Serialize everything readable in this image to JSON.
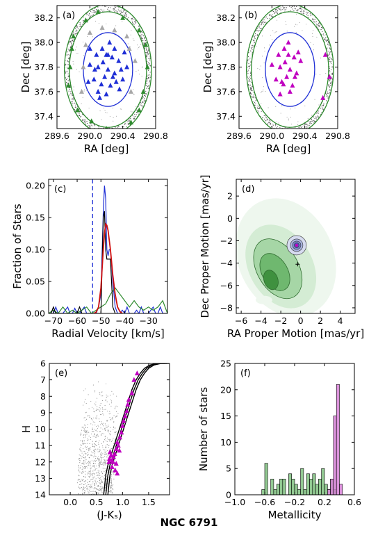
{
  "figure_title": "NGC 6791",
  "colors": {
    "member_blue": "#1f2fd6",
    "member_magenta": "#c000c0",
    "field_green": "#2e8b2e",
    "nonmember_gray": "#a8a8a8",
    "model_red": "#d01010",
    "hist_green": "#7fbf7f",
    "hist_magenta": "#d67fd6"
  },
  "chart_data": [
    {
      "panel": "(a)",
      "type": "scatter",
      "xlabel": "RA [deg]",
      "ylabel": "Dec [deg]",
      "xlim": [
        289.6,
        290.8
      ],
      "ylim": [
        37.3,
        38.3
      ],
      "xticks": [
        "289.6",
        "290.0",
        "290.4",
        "290.8"
      ],
      "yticks": [
        "37.4",
        "37.6",
        "37.8",
        "38.0",
        "38.2"
      ],
      "center": [
        290.22,
        37.78
      ],
      "circles_radius_deg": [
        0.3,
        0.47,
        0.53
      ],
      "series": [
        {
          "marker": "triangle",
          "color": "#1f2fd6",
          "points": [
            [
              290.1,
              37.8
            ],
            [
              290.2,
              37.9
            ],
            [
              290.3,
              37.75
            ],
            [
              290.05,
              37.7
            ],
            [
              290.25,
              37.65
            ],
            [
              290.15,
              37.95
            ],
            [
              290.35,
              37.85
            ],
            [
              290.0,
              37.82
            ],
            [
              290.22,
              37.78
            ],
            [
              290.4,
              37.7
            ],
            [
              290.1,
              37.6
            ],
            [
              290.3,
              37.95
            ],
            [
              290.18,
              37.72
            ],
            [
              290.27,
              37.88
            ],
            [
              290.08,
              37.9
            ],
            [
              290.36,
              37.62
            ],
            [
              290.12,
              37.55
            ],
            [
              290.45,
              37.8
            ],
            [
              290.0,
              37.95
            ],
            [
              290.24,
              38.0
            ],
            [
              290.32,
              37.68
            ],
            [
              290.16,
              37.84
            ],
            [
              289.98,
              37.68
            ],
            [
              290.42,
              37.92
            ],
            [
              290.2,
              37.58
            ],
            [
              290.06,
              37.78
            ],
            [
              290.28,
              37.72
            ],
            [
              290.14,
              37.66
            ],
            [
              290.38,
              37.78
            ],
            [
              290.22,
              37.9
            ]
          ]
        },
        {
          "marker": "triangle",
          "color": "#a8a8a8",
          "points": [
            [
              289.95,
              37.98
            ],
            [
              290.45,
              38.05
            ],
            [
              290.5,
              37.6
            ],
            [
              289.9,
              37.6
            ],
            [
              290.0,
              38.08
            ],
            [
              290.55,
              37.85
            ],
            [
              290.3,
              38.1
            ],
            [
              289.92,
              37.8
            ],
            [
              290.15,
              38.12
            ],
            [
              290.48,
              37.95
            ]
          ]
        },
        {
          "marker": "triangle",
          "color": "#2e8b2e",
          "points": [
            [
              289.76,
              37.8
            ],
            [
              289.8,
              38.05
            ],
            [
              290.1,
              38.25
            ],
            [
              290.6,
              38.1
            ],
            [
              290.7,
              37.8
            ],
            [
              290.6,
              37.45
            ],
            [
              290.2,
              37.3
            ],
            [
              289.85,
              37.45
            ],
            [
              289.74,
              37.65
            ],
            [
              290.4,
              38.2
            ],
            [
              290.65,
              37.6
            ],
            [
              289.95,
              38.18
            ],
            [
              290.5,
              37.35
            ],
            [
              290.02,
              37.36
            ],
            [
              290.68,
              37.98
            ],
            [
              289.78,
              37.95
            ]
          ]
        }
      ]
    },
    {
      "panel": "(b)",
      "type": "scatter",
      "xlabel": "RA [deg]",
      "ylabel": "Dec [deg]",
      "xlim": [
        289.6,
        290.8
      ],
      "ylim": [
        37.3,
        38.3
      ],
      "xticks": [
        "289.6",
        "290.0",
        "290.4",
        "290.8"
      ],
      "yticks": [
        "37.4",
        "37.6",
        "37.8",
        "38.0",
        "38.2"
      ],
      "center": [
        290.22,
        37.78
      ],
      "circles_radius_deg": [
        0.3,
        0.47,
        0.53
      ],
      "series": [
        {
          "marker": "triangle",
          "color": "#c000c0",
          "points": [
            [
              290.1,
              37.8
            ],
            [
              290.2,
              37.9
            ],
            [
              290.3,
              37.75
            ],
            [
              290.05,
              37.7
            ],
            [
              290.25,
              37.65
            ],
            [
              290.15,
              37.95
            ],
            [
              290.35,
              37.85
            ],
            [
              290.0,
              37.82
            ],
            [
              290.22,
              37.78
            ],
            [
              290.12,
              37.68
            ],
            [
              290.18,
              37.72
            ],
            [
              290.27,
              37.88
            ],
            [
              290.08,
              37.9
            ],
            [
              290.16,
              37.84
            ],
            [
              290.28,
              37.72
            ],
            [
              290.14,
              37.66
            ],
            [
              290.22,
              37.6
            ],
            [
              290.32,
              37.92
            ],
            [
              290.2,
              38.0
            ],
            [
              290.1,
              37.58
            ],
            [
              290.7,
              37.72
            ],
            [
              290.62,
              37.55
            ],
            [
              290.65,
              37.9
            ]
          ]
        }
      ]
    },
    {
      "panel": "(c)",
      "type": "line",
      "xlabel": "Radial Velocity [km/s]",
      "ylabel": "Fraction of Stars",
      "xlim": [
        -72,
        -22
      ],
      "ylim": [
        0,
        0.21
      ],
      "xticks": [
        "−70",
        "−60",
        "−50",
        "−40",
        "−30"
      ],
      "yticks": [
        "0.00",
        "0.05",
        "0.10",
        "0.15",
        "0.20"
      ],
      "vline_x": -53.5,
      "series": [
        {
          "color": "#1f2fd6",
          "x": [
            -72,
            -70,
            -69,
            -68,
            -67,
            -66,
            -65,
            -64,
            -63,
            -62,
            -61,
            -60,
            -59,
            -58,
            -57,
            -56,
            -55,
            -54,
            -53,
            -52,
            -51,
            -50,
            -49,
            -48.5,
            -48,
            -47.5,
            -47,
            -46.5,
            -46,
            -45,
            -44,
            -43,
            -42,
            -41,
            -40,
            -39,
            -38,
            -37,
            -36,
            -35,
            -34,
            -33,
            -32,
            -31,
            -30,
            -29,
            -28,
            -27,
            -26,
            -25,
            -24,
            -23,
            -22
          ],
          "y": [
            0,
            0,
            0.01,
            0,
            0,
            0,
            0.005,
            0.01,
            0,
            0,
            0.008,
            0,
            0,
            0.005,
            0.01,
            0,
            0,
            0,
            0,
            0,
            0.01,
            0.03,
            0.16,
            0.2,
            0.18,
            0.1,
            0.09,
            0.1,
            0.1,
            0.05,
            0.01,
            0,
            0,
            0.005,
            0,
            0.01,
            0,
            0,
            0,
            0.005,
            0,
            0.01,
            0,
            0,
            0,
            0.005,
            0.01,
            0,
            0,
            0.01,
            0,
            0,
            0
          ]
        },
        {
          "color": "#2e8b2e",
          "x": [
            -72,
            -70,
            -68,
            -66,
            -64,
            -62,
            -60,
            -58,
            -56,
            -54,
            -52,
            -50,
            -48,
            -46,
            -44,
            -42,
            -40,
            -38,
            -36,
            -34,
            -32,
            -30,
            -28,
            -26,
            -24,
            -22
          ],
          "y": [
            0,
            0.005,
            0,
            0.01,
            0,
            0.005,
            0,
            0.005,
            0.01,
            0,
            0.005,
            0.01,
            0.015,
            0.03,
            0.04,
            0.03,
            0.02,
            0.01,
            0.02,
            0.01,
            0.005,
            0.01,
            0.005,
            0.01,
            0.02,
            0
          ]
        },
        {
          "color": "#000000",
          "x": [
            -72,
            -71,
            -70,
            -69,
            -60,
            -59,
            -58,
            -50,
            -49,
            -48.5,
            -48,
            -47.5,
            -47,
            -46.5,
            -46,
            -45,
            -44,
            -43
          ],
          "y": [
            0,
            0,
            0.01,
            0,
            0,
            0.01,
            0,
            0,
            0.15,
            0.16,
            0.1,
            0.085,
            0.085,
            0.085,
            0.085,
            0.01,
            0,
            0
          ]
        },
        {
          "color": "#d01010",
          "x": [
            -53,
            -52,
            -51,
            -50,
            -49,
            -48.5,
            -48,
            -47.5,
            -47,
            -46,
            -45,
            -44,
            -43,
            -42,
            -41
          ],
          "y": [
            0,
            0.002,
            0.01,
            0.04,
            0.1,
            0.125,
            0.14,
            0.138,
            0.13,
            0.1,
            0.06,
            0.03,
            0.01,
            0.003,
            0
          ]
        }
      ]
    },
    {
      "panel": "(d)",
      "type": "heatmap",
      "xlabel": "RA Proper Motion [mas/yr]",
      "ylabel": "Dec Proper Motion [mas/yr]",
      "xlim": [
        -6.5,
        5.5
      ],
      "ylim": [
        -8.5,
        3.5
      ],
      "xticks": [
        "−6",
        "−4",
        "−2",
        "0",
        "2",
        "4"
      ],
      "yticks": [
        "−8",
        "−6",
        "−4",
        "−2",
        "0",
        "2"
      ],
      "member_center": [
        -0.4,
        -2.4
      ],
      "cross": [
        -0.3,
        -4.1
      ]
    },
    {
      "panel": "(e)",
      "type": "scatter",
      "xlabel": "(J-Kₛ)",
      "ylabel": "H",
      "xlim": [
        -0.4,
        1.9
      ],
      "ylim": [
        14,
        6
      ],
      "xticks": [
        "0.0",
        "0.5",
        "1.0",
        "1.5"
      ],
      "yticks": [
        "6",
        "7",
        "8",
        "9",
        "10",
        "11",
        "12",
        "13",
        "14"
      ],
      "members": [
        [
          0.75,
          11.8
        ],
        [
          0.78,
          11.6
        ],
        [
          0.8,
          12.3
        ],
        [
          0.82,
          12.0
        ],
        [
          0.85,
          11.5
        ],
        [
          0.88,
          11.2
        ],
        [
          0.9,
          10.8
        ],
        [
          0.92,
          11.0
        ],
        [
          0.95,
          10.5
        ],
        [
          0.98,
          10.2
        ],
        [
          1.0,
          9.8
        ],
        [
          1.02,
          9.5
        ],
        [
          1.05,
          9.2
        ],
        [
          1.08,
          8.9
        ],
        [
          1.1,
          8.5
        ],
        [
          1.12,
          8.2
        ],
        [
          1.18,
          7.8
        ],
        [
          1.22,
          7.0
        ],
        [
          1.28,
          6.6
        ],
        [
          0.86,
          12.5
        ],
        [
          0.9,
          12.7
        ],
        [
          0.8,
          11.9
        ],
        [
          0.83,
          11.7
        ],
        [
          0.88,
          12.1
        ],
        [
          0.94,
          11.3
        ],
        [
          0.74,
          12.0
        ],
        [
          0.76,
          11.4
        ]
      ],
      "isochrone": [
        [
          0.68,
          14.0
        ],
        [
          0.7,
          13.4
        ],
        [
          0.72,
          12.8
        ],
        [
          0.76,
          12.2
        ],
        [
          0.82,
          11.6
        ],
        [
          0.9,
          10.8
        ],
        [
          0.98,
          10.0
        ],
        [
          1.06,
          9.2
        ],
        [
          1.14,
          8.4
        ],
        [
          1.22,
          7.6
        ],
        [
          1.3,
          7.0
        ],
        [
          1.38,
          6.6
        ],
        [
          1.46,
          6.3
        ],
        [
          1.56,
          6.1
        ],
        [
          1.7,
          6.0
        ],
        [
          1.85,
          6.0
        ]
      ]
    },
    {
      "panel": "(f)",
      "type": "bar",
      "xlabel": "Metallicity",
      "ylabel": "Number of stars",
      "xlim": [
        -1.0,
        0.6
      ],
      "ylim": [
        0,
        25
      ],
      "xticks": [
        "−1.0",
        "−0.6",
        "−0.2",
        "0.2",
        "0.6"
      ],
      "yticks": [
        "0",
        "5",
        "10",
        "15",
        "20",
        "25"
      ],
      "bin_width": 0.04,
      "series": [
        {
          "color": "#7fbf7f",
          "bin_starts": [
            -0.64,
            -0.6,
            -0.56,
            -0.52,
            -0.48,
            -0.44,
            -0.4,
            -0.36,
            -0.32,
            -0.28,
            -0.24,
            -0.2,
            -0.16,
            -0.12,
            -0.08,
            -0.04,
            0.0,
            0.04,
            0.08,
            0.12,
            0.16,
            0.2,
            0.24,
            0.28,
            0.32
          ],
          "values": [
            1,
            6,
            0,
            3,
            1,
            2,
            3,
            3,
            0,
            4,
            3,
            2,
            1,
            5,
            1,
            4,
            3,
            4,
            2,
            3,
            5,
            2,
            1,
            3,
            1
          ]
        },
        {
          "color": "#d67fd6",
          "bin_starts": [
            0.24,
            0.28,
            0.32,
            0.36,
            0.4
          ],
          "values": [
            1,
            3,
            15,
            21,
            2
          ]
        }
      ]
    }
  ]
}
